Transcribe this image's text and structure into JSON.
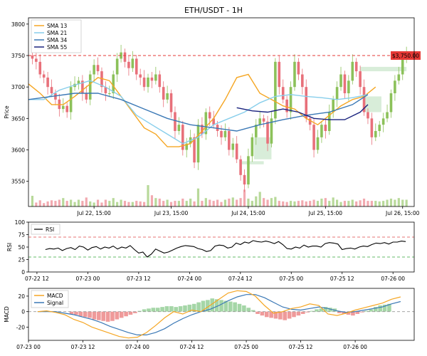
{
  "title": "ETH/USDT - 1H",
  "colors": {
    "up": "#8cc15a",
    "down": "#e8707a",
    "vol_up": "#b8d99a",
    "vol_down": "#f2aab0",
    "sma13": "#f5a623",
    "sma21": "#87ceeb",
    "sma34": "#3a78b5",
    "sma55": "#1a237e",
    "level": "#e53935",
    "zone": "#c8e6c9",
    "rsi": "#000000",
    "rsi_upper": "#e57373",
    "rsi_lower": "#66bb6a",
    "macd": "#f5a623",
    "signal": "#3a78b5",
    "hist_pos": "#a5d6a7",
    "hist_neg": "#ef9a9a"
  },
  "chart_data": [
    {
      "type": "candlestick",
      "title": "ETH/USDT - 1H",
      "ylabel": "Price",
      "ylim": [
        3510,
        3810
      ],
      "yticks": [
        3550,
        3600,
        3650,
        3700,
        3750,
        3800
      ],
      "xlim": [
        0,
        100
      ],
      "xticks": [
        {
          "x": 17,
          "label": "Jul 22, 15:00"
        },
        {
          "x": 37,
          "label": "Jul 23, 15:00"
        },
        {
          "x": 57,
          "label": "Jul 24, 15:00"
        },
        {
          "x": 77,
          "label": "Jul 25, 15:00"
        },
        {
          "x": 97,
          "label": "Jul 26, 15:00"
        }
      ],
      "legend": {
        "placement": "top-left",
        "entries": [
          "SMA 13",
          "SMA 21",
          "SMA 34",
          "SMA 55"
        ]
      },
      "price_level": {
        "value": 3750,
        "label": "$3,750.00"
      },
      "zones": [
        {
          "x0": 58.5,
          "x1": 63,
          "y0": 3585,
          "y1": 3620
        },
        {
          "x0": 55,
          "x1": 61,
          "y0": 3577,
          "y1": 3582
        },
        {
          "x0": 87,
          "x1": 91.5,
          "y0": 3660,
          "y1": 3685
        },
        {
          "x0": 86,
          "x1": 98,
          "y0": 3725,
          "y1": 3732
        }
      ],
      "close": [
        3745,
        3740,
        3720,
        3715,
        3700,
        3690,
        3680,
        3665,
        3670,
        3660,
        3700,
        3705,
        3710,
        3690,
        3680,
        3720,
        3735,
        3725,
        3700,
        3690,
        3690,
        3720,
        3745,
        3755,
        3740,
        3730,
        3745,
        3720,
        3715,
        3700,
        3715,
        3710,
        3720,
        3700,
        3680,
        3690,
        3660,
        3630,
        3640,
        3600,
        3610,
        3620,
        3580,
        3640,
        3625,
        3660,
        3650,
        3640,
        3630,
        3620,
        3630,
        3600,
        3610,
        3585,
        3560,
        3545,
        3590,
        3620,
        3640,
        3650,
        3645,
        3610,
        3650,
        3740,
        3700,
        3680,
        3660,
        3700,
        3740,
        3720,
        3700,
        3650,
        3640,
        3600,
        3620,
        3640,
        3630,
        3660,
        3680,
        3700,
        3720,
        3690,
        3710,
        3740,
        3725,
        3700,
        3660,
        3650,
        3620,
        3630,
        3640,
        3650,
        3660,
        3690,
        3710,
        3720,
        3750,
        3755
      ],
      "volume": [
        1.9,
        0.7,
        1.1,
        0.6,
        0.9,
        1.1,
        1.0,
        1.2,
        1.5,
        1.0,
        1.2,
        0.8,
        1.2,
        1.0,
        1.6,
        0.9,
        0.7,
        1.2,
        0.7,
        1.2,
        1.0,
        1.5,
        0.8,
        1.2,
        1.0,
        0.8,
        0.8,
        1.0,
        0.9,
        0.8,
        3.8,
        2.0,
        1.5,
        1.4,
        1.0,
        1.2,
        0.8,
        1.0,
        1.0,
        1.4,
        1.0,
        1.4,
        0.9,
        3.2,
        1.0,
        1.5,
        1.2,
        1.0,
        1.2,
        0.8,
        1.2,
        1.4,
        1.6,
        1.2,
        1.5,
        3.0,
        1.4,
        1.0,
        1.8,
        2.6,
        1.5,
        1.2,
        1.5,
        1.7,
        1.0,
        0.9,
        0.8,
        1.0,
        0.9,
        1.0,
        1.1,
        0.9,
        1.0,
        1.2,
        1.0,
        1.4,
        1.5,
        1.0,
        1.6,
        1.2,
        0.8,
        1.0,
        1.0,
        1.2,
        0.9,
        1.1,
        1.4,
        1.0,
        1.0,
        1.0,
        0.9,
        1.0,
        1.2,
        1.4,
        1.2,
        1.5,
        1.2,
        1.2
      ],
      "series": [
        {
          "name": "SMA 13",
          "x": [
            0,
            3,
            6,
            9,
            12,
            15,
            18,
            21,
            24,
            27,
            30,
            33,
            36,
            39,
            42,
            45,
            48,
            51,
            54,
            57,
            60,
            63,
            66,
            69,
            72,
            75,
            78,
            81,
            84,
            87,
            90
          ],
          "values": [
            3705,
            3690,
            3672,
            3672,
            3685,
            3700,
            3715,
            3710,
            3685,
            3660,
            3635,
            3625,
            3605,
            3605,
            3610,
            3630,
            3650,
            3680,
            3715,
            3720,
            3690,
            3680,
            3670,
            3665,
            3650,
            3640,
            3655,
            3670,
            3680,
            3685,
            3700
          ]
        },
        {
          "name": "SMA 21",
          "x": [
            0,
            4,
            8,
            12,
            16,
            20,
            24,
            28,
            32,
            36,
            40,
            44,
            48,
            52,
            56,
            60,
            64,
            68,
            72,
            76,
            80,
            84,
            88
          ],
          "values": [
            3680,
            3680,
            3695,
            3703,
            3710,
            3700,
            3685,
            3655,
            3640,
            3625,
            3610,
            3620,
            3640,
            3650,
            3660,
            3675,
            3685,
            3688,
            3685,
            3683,
            3680,
            3683,
            3688
          ]
        },
        {
          "name": "SMA 34",
          "x": [
            0,
            6,
            12,
            18,
            24,
            30,
            36,
            42,
            48,
            54,
            60,
            66,
            72,
            78,
            84,
            88
          ],
          "values": [
            3680,
            3685,
            3690,
            3690,
            3680,
            3665,
            3650,
            3640,
            3635,
            3630,
            3640,
            3648,
            3655,
            3660,
            3672,
            3688
          ]
        },
        {
          "name": "SMA 55",
          "x": [
            54,
            58,
            62,
            66,
            70,
            74,
            78,
            82,
            86,
            88
          ],
          "values": [
            3667,
            3662,
            3660,
            3665,
            3660,
            3650,
            3648,
            3648,
            3660,
            3672
          ]
        }
      ]
    },
    {
      "type": "line",
      "ylabel": "RSI",
      "ylim": [
        0,
        100
      ],
      "yticks": [
        0,
        25,
        50,
        75,
        100
      ],
      "hlines": [
        70,
        30
      ],
      "xticks": [
        {
          "x": 0,
          "label": "07-22 12"
        },
        {
          "x": 12,
          "label": "07-23 00"
        },
        {
          "x": 24,
          "label": "07-23 12"
        },
        {
          "x": 36,
          "label": "07-24 00"
        },
        {
          "x": 48,
          "label": "07-24 12"
        },
        {
          "x": 60,
          "label": "07-25 00"
        },
        {
          "x": 72,
          "label": "07-25 12"
        },
        {
          "x": 84,
          "label": "07-26 00"
        }
      ],
      "legend": {
        "placement": "top-left",
        "entries": [
          "RSI"
        ]
      },
      "series": [
        {
          "name": "RSI",
          "x": [
            2,
            3,
            4,
            5,
            6,
            7,
            8,
            9,
            10,
            11,
            12,
            13,
            14,
            15,
            16,
            17,
            18,
            19,
            20,
            21,
            22,
            23,
            24,
            25,
            26,
            27,
            28,
            29,
            30,
            31,
            32,
            33,
            34,
            35,
            36,
            37,
            38,
            39,
            40,
            41,
            42,
            43,
            44,
            45,
            46,
            47,
            48,
            49,
            50,
            51,
            52,
            53,
            54,
            55,
            56,
            57,
            58,
            59,
            60,
            61,
            62,
            63,
            64,
            65,
            66,
            67,
            68,
            69,
            70,
            71,
            72,
            73,
            74,
            75,
            76,
            77,
            78,
            79,
            80,
            81,
            82,
            83,
            84,
            85,
            86,
            87
          ],
          "values": [
            45,
            47,
            46,
            48,
            43,
            47,
            49,
            45,
            52,
            50,
            44,
            49,
            51,
            46,
            50,
            48,
            52,
            46,
            50,
            48,
            53,
            45,
            38,
            40,
            30,
            36,
            46,
            42,
            38,
            40,
            44,
            48,
            51,
            53,
            52,
            51,
            47,
            45,
            41,
            43,
            52,
            54,
            53,
            48,
            50,
            58,
            55,
            60,
            58,
            63,
            61,
            60,
            62,
            60,
            57,
            61,
            55,
            47,
            46,
            50,
            48,
            54,
            50,
            52,
            52,
            50,
            57,
            59,
            58,
            56,
            45,
            47,
            48,
            46,
            50,
            52,
            51,
            55,
            58,
            57,
            59,
            56,
            60,
            60,
            62,
            61
          ]
        }
      ]
    },
    {
      "type": "line",
      "ylabel": "MACD",
      "ylim": [
        -37,
        30
      ],
      "yticks": [
        -20,
        0,
        20
      ],
      "xticks": [
        {
          "x": 0,
          "label": "07-23 00"
        },
        {
          "x": 12,
          "label": "07-23 12"
        },
        {
          "x": 24,
          "label": "07-24 00"
        },
        {
          "x": 36,
          "label": "07-24 12"
        },
        {
          "x": 48,
          "label": "07-25 00"
        },
        {
          "x": 60,
          "label": "07-25 12"
        },
        {
          "x": 72,
          "label": "07-26 00"
        }
      ],
      "legend": {
        "placement": "top-left",
        "entries": [
          "MACD",
          "Signal"
        ]
      },
      "hist_x": [
        9.5,
        10.5,
        11.5,
        12.5,
        13.5,
        14.5,
        15.5,
        16.5,
        17.5,
        18.5,
        19.5,
        20.5,
        21.5,
        22.5,
        23.5,
        24.5,
        25.5,
        26.5,
        27.5,
        28.5,
        29.5,
        30.5,
        31.5,
        32.5,
        33.5,
        34.5,
        35.5,
        36.5,
        37.5,
        38.5,
        39.5,
        40.5,
        41.5,
        42.5,
        43.5,
        44.5,
        45.5,
        46.5,
        47.5,
        48.5,
        49.5,
        50.5,
        51.5,
        52.5,
        53.5,
        54.5,
        55.5,
        56.5,
        57.5,
        58.5,
        59.5,
        60.5,
        61.5,
        62.5,
        63.5,
        64.5,
        65.5,
        66.5,
        67.5,
        68.5,
        69.5,
        70.5,
        71.5,
        72.5,
        73.5,
        74.5,
        75.5,
        76.5,
        77.5,
        78.5,
        79.5
      ],
      "hist": [
        -3,
        -4,
        -6,
        -7,
        -8,
        -10,
        -11,
        -12,
        -13,
        -12,
        -10,
        -8,
        -6,
        -4,
        -2,
        1,
        3,
        4,
        5,
        5,
        6,
        7,
        7,
        6,
        7,
        8,
        9,
        10,
        12,
        14,
        15,
        17,
        16,
        15,
        14,
        13,
        12,
        10,
        8,
        5,
        2,
        -3,
        -5,
        -7,
        -8,
        -9,
        -10,
        -11,
        -9,
        -7,
        -5,
        -3,
        -1,
        1,
        3,
        4,
        6,
        5,
        4,
        -2,
        -3,
        -4,
        -5,
        -3,
        -1,
        1,
        3,
        6,
        8,
        9,
        10
      ],
      "series": [
        {
          "name": "MACD",
          "x": [
            2,
            4,
            6,
            8,
            10,
            12,
            14,
            16,
            18,
            20,
            22,
            24,
            26,
            28,
            30,
            32,
            34,
            36,
            38,
            40,
            42,
            44,
            46,
            48,
            50,
            52,
            54,
            56,
            58,
            60,
            62,
            64,
            66,
            68,
            70,
            72,
            74,
            76,
            78,
            80,
            82
          ],
          "values": [
            0,
            1,
            -1,
            -4,
            -10,
            -14,
            -20,
            -24,
            -28,
            -32,
            -34,
            -33,
            -27,
            -18,
            -8,
            0,
            -3,
            2,
            0,
            8,
            16,
            24,
            27,
            26,
            20,
            8,
            -2,
            0,
            4,
            6,
            10,
            8,
            -3,
            -5,
            -2,
            2,
            5,
            8,
            11,
            16,
            19
          ]
        },
        {
          "name": "Signal",
          "x": [
            2,
            4,
            6,
            8,
            10,
            12,
            14,
            16,
            18,
            20,
            22,
            24,
            26,
            28,
            30,
            32,
            34,
            36,
            38,
            40,
            42,
            44,
            46,
            48,
            50,
            52,
            54,
            56,
            58,
            60,
            62,
            64,
            66,
            68,
            70,
            72,
            74,
            76,
            78,
            80,
            82
          ],
          "values": [
            0,
            0,
            0,
            -2,
            -4,
            -7,
            -10,
            -14,
            -19,
            -23,
            -27,
            -30,
            -30,
            -27,
            -22,
            -15,
            -9,
            -4,
            0,
            3,
            8,
            14,
            19,
            22,
            22,
            18,
            12,
            6,
            3,
            2,
            4,
            6,
            4,
            1,
            -1,
            0,
            2,
            4,
            6,
            10,
            13
          ]
        }
      ]
    }
  ]
}
